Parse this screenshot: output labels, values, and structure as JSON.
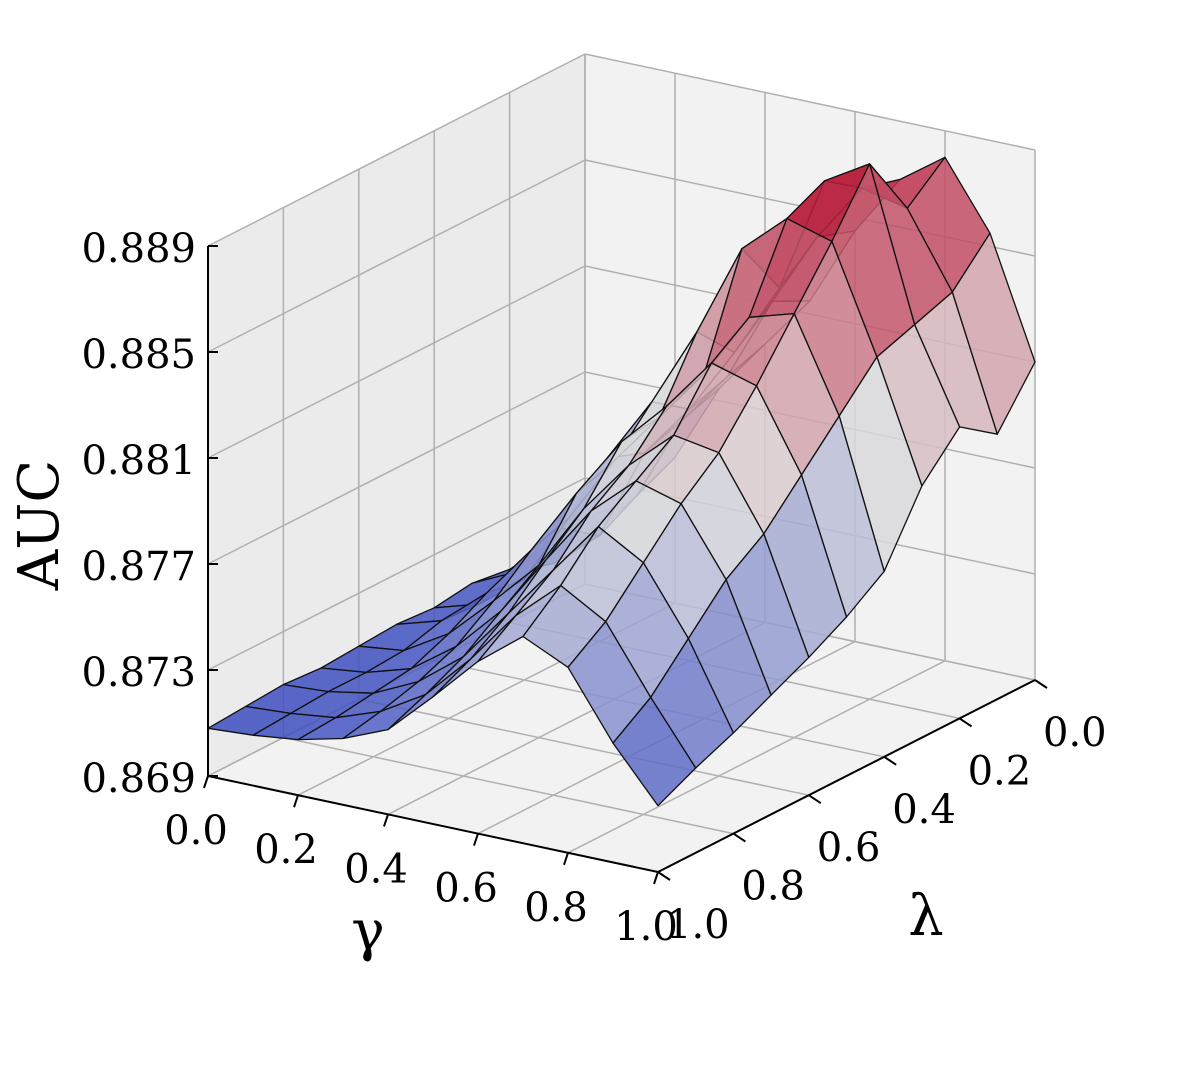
{
  "chart_data": {
    "type": "surface3d",
    "title": "",
    "xlabel": "γ",
    "ylabel": "λ",
    "zlabel": "AUC",
    "x": [
      0.0,
      0.1,
      0.2,
      0.3,
      0.4,
      0.5,
      0.6,
      0.7,
      0.8,
      0.9,
      1.0
    ],
    "y": [
      0.0,
      0.1,
      0.2,
      0.3,
      0.4,
      0.5,
      0.6,
      0.7,
      0.8,
      0.9,
      1.0
    ],
    "x_ticks": [
      0.0,
      0.2,
      0.4,
      0.6,
      0.8,
      1.0
    ],
    "y_ticks": [
      0.0,
      0.2,
      0.4,
      0.6,
      0.8,
      1.0
    ],
    "z_ticks": [
      0.869,
      0.873,
      0.877,
      0.881,
      0.885,
      0.889
    ],
    "x_tick_labels": [
      "0.0",
      "0.2",
      "0.4",
      "0.6",
      "0.8",
      "1.0"
    ],
    "y_tick_labels": [
      "0.0",
      "0.2",
      "0.4",
      "0.6",
      "0.8",
      "1.0"
    ],
    "z_tick_labels": [
      "0.869",
      "0.873",
      "0.877",
      "0.881",
      "0.885",
      "0.889"
    ],
    "zlim": [
      0.869,
      0.889
    ],
    "grid": true,
    "colormap": "coolwarm",
    "colormap_low": "#3b4cc0",
    "colormap_mid": "#dddddd",
    "colormap_high": "#b40426",
    "z_note": "rows indexed by λ (0.0 → 1.0), columns by γ (0.0 → 1.0)",
    "z": [
      [
        0.8715,
        0.8725,
        0.8745,
        0.8775,
        0.8795,
        0.8815,
        0.8845,
        0.8868,
        0.888,
        0.8855,
        0.881
      ],
      [
        0.8712,
        0.8718,
        0.8738,
        0.877,
        0.879,
        0.8822,
        0.885,
        0.8872,
        0.8868,
        0.884,
        0.879
      ],
      [
        0.871,
        0.8716,
        0.873,
        0.8765,
        0.8785,
        0.881,
        0.8838,
        0.8882,
        0.8892,
        0.8835,
        0.88
      ],
      [
        0.8712,
        0.872,
        0.874,
        0.877,
        0.8795,
        0.8825,
        0.886,
        0.8875,
        0.887,
        0.883,
        0.8785
      ],
      [
        0.871,
        0.8715,
        0.8728,
        0.8755,
        0.878,
        0.88,
        0.882,
        0.8845,
        0.885,
        0.8815,
        0.876
      ],
      [
        0.8711,
        0.8716,
        0.873,
        0.875,
        0.8775,
        0.8798,
        0.8815,
        0.8835,
        0.883,
        0.88,
        0.875
      ],
      [
        0.871,
        0.8712,
        0.8722,
        0.8738,
        0.8755,
        0.878,
        0.88,
        0.8815,
        0.8812,
        0.8785,
        0.8742
      ],
      [
        0.8709,
        0.8711,
        0.8716,
        0.8728,
        0.8745,
        0.8768,
        0.879,
        0.8805,
        0.88,
        0.8775,
        0.8735
      ],
      [
        0.871,
        0.8711,
        0.8714,
        0.8722,
        0.8735,
        0.8755,
        0.8775,
        0.8795,
        0.8785,
        0.876,
        0.8728
      ],
      [
        0.8709,
        0.871,
        0.8712,
        0.8718,
        0.8728,
        0.8745,
        0.8765,
        0.878,
        0.877,
        0.8745,
        0.8722
      ],
      [
        0.8708,
        0.8709,
        0.8711,
        0.8715,
        0.8722,
        0.8738,
        0.8755,
        0.8768,
        0.876,
        0.8735,
        0.8715
      ]
    ]
  }
}
